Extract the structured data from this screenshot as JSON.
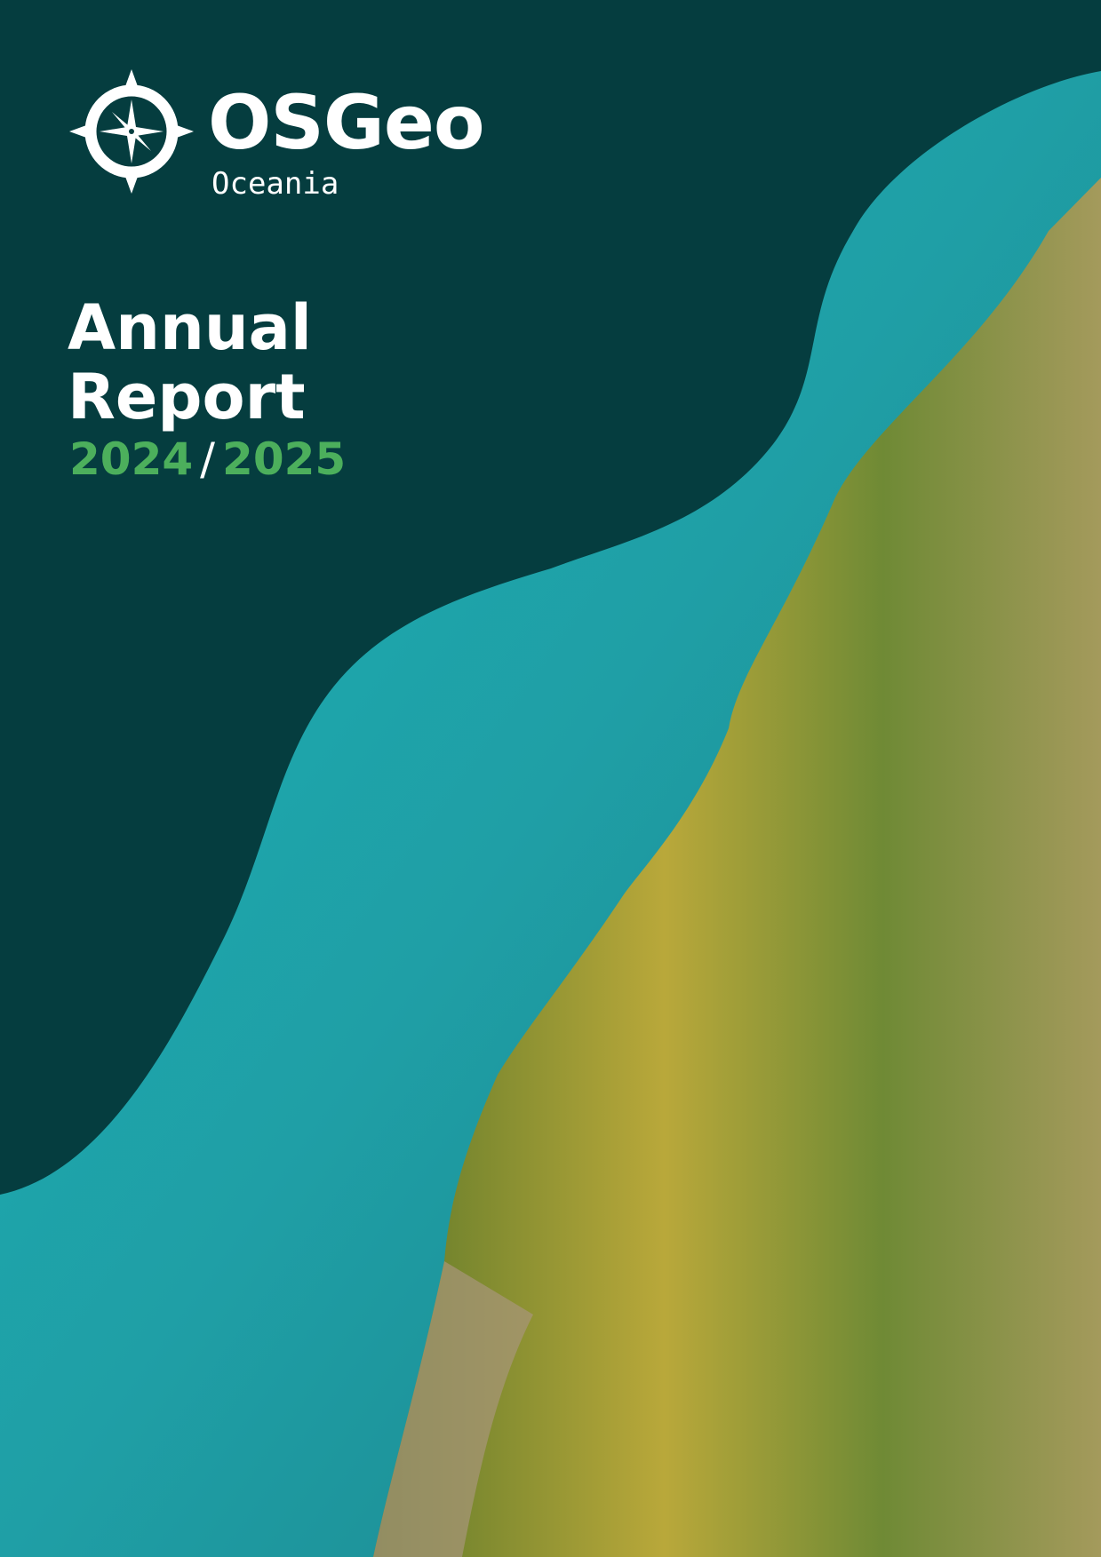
{
  "logo": {
    "name": "OSGeo",
    "region": "Oceania",
    "icon": "compass-rose-icon"
  },
  "cover": {
    "title_line1": "Annual",
    "title_line2": "Report",
    "year_start": "2024",
    "year_separator": "/",
    "year_end": "2025"
  },
  "colors": {
    "panel": "#053d3f",
    "accent_green": "#4caf5c",
    "water": "#1fa3ab",
    "forest": "#6e8a2c"
  }
}
